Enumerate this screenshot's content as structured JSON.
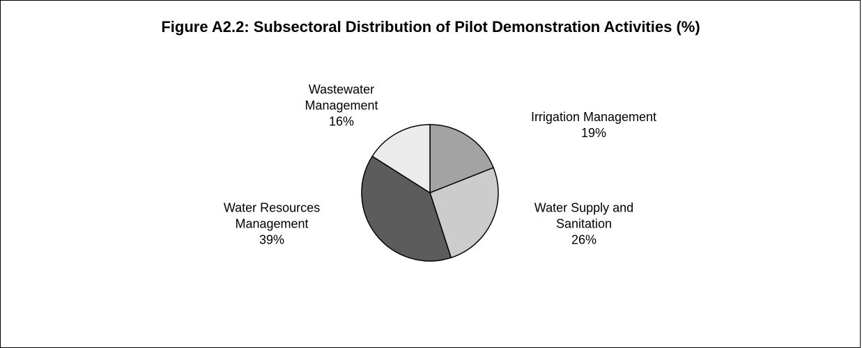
{
  "chart_data": {
    "type": "pie",
    "title": "Figure A2.2: Subsectoral Distribution of Pilot Demonstration Activities (%)",
    "categories": [
      "Irrigation Management",
      "Water Supply and Sanitation",
      "Water Resources Management",
      "Wastewater Management"
    ],
    "values": [
      19,
      26,
      39,
      16
    ],
    "value_labels": [
      "19%",
      "26%",
      "39%",
      "16%"
    ],
    "colors": [
      "#a3a3a3",
      "#cccccc",
      "#5c5c5c",
      "#ebebeb"
    ]
  }
}
